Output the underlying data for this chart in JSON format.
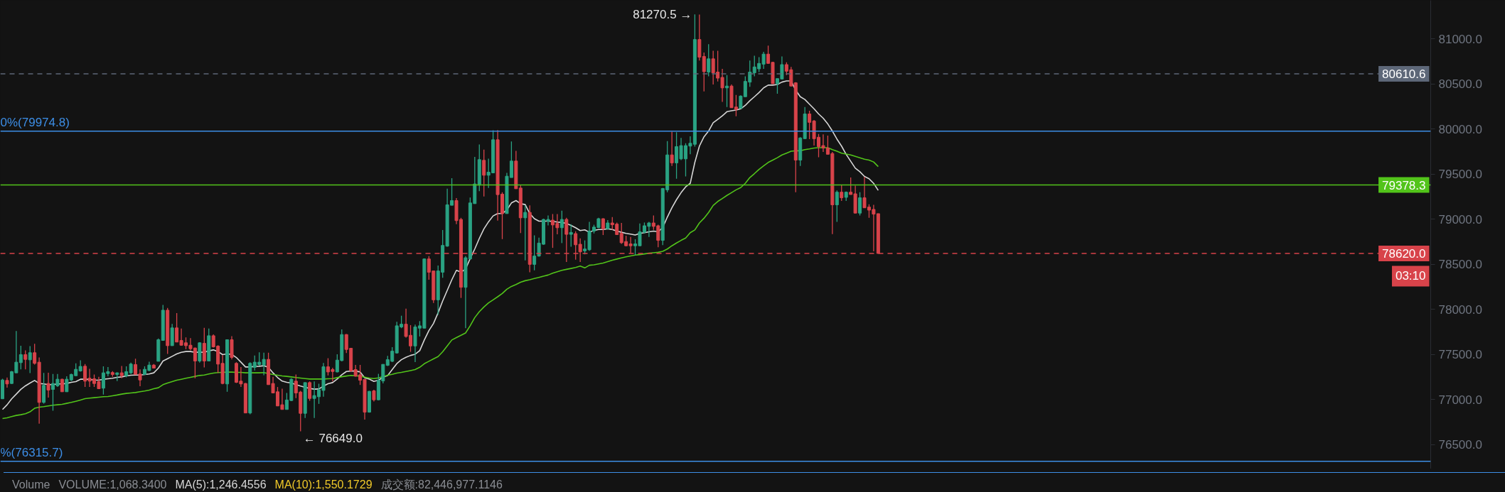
{
  "chart_data": {
    "type": "candlestick",
    "categories": [
      null,
      null,
      null,
      null,
      null,
      null,
      null,
      null,
      null,
      null,
      null,
      null,
      null,
      null,
      null,
      null,
      null,
      null,
      null,
      null,
      null,
      null,
      null,
      null,
      null,
      null,
      null,
      null,
      null,
      null,
      null,
      null,
      null,
      null,
      null,
      null,
      null,
      null,
      null,
      null,
      null,
      null,
      null,
      null,
      null,
      null,
      null,
      null,
      null,
      null,
      null,
      null,
      null,
      null,
      null,
      null,
      null,
      null,
      null,
      null,
      null,
      null,
      null,
      null,
      null,
      null,
      null,
      null,
      null,
      null,
      null,
      null,
      null,
      null,
      null,
      null,
      null,
      null,
      null,
      null,
      null,
      null,
      null,
      null,
      null,
      null,
      null,
      null,
      null,
      null,
      null,
      null,
      null,
      null,
      null,
      null,
      null,
      null,
      null,
      null,
      null,
      null,
      null,
      null,
      null,
      null,
      null,
      null,
      null,
      null,
      null,
      null,
      null,
      null,
      null,
      null,
      null,
      null,
      null,
      null,
      null,
      null,
      null,
      null,
      null,
      null,
      null,
      null,
      null,
      null,
      null,
      null,
      null,
      null,
      null,
      null,
      null,
      null,
      null,
      null,
      null,
      null,
      null,
      null,
      null,
      null,
      null,
      null,
      null,
      null,
      null,
      null,
      null,
      null,
      null,
      null,
      null,
      null,
      null,
      null,
      null,
      null,
      null,
      null,
      null,
      null,
      null,
      null,
      null,
      null,
      null,
      null,
      null,
      null,
      null,
      null,
      null,
      null,
      null,
      null,
      null,
      null,
      null,
      null,
      null,
      null,
      null,
      null,
      null,
      null,
      null,
      null
    ],
    "ohlc": [
      [
        77009,
        77231,
        77009,
        77218
      ],
      [
        77213,
        77245,
        77132,
        77174
      ],
      [
        77179,
        77318,
        77174,
        77310
      ],
      [
        77297,
        77761,
        77297,
        77415
      ],
      [
        77410,
        77598,
        77336,
        77499
      ],
      [
        77499,
        77546,
        77336,
        77446
      ],
      [
        77441,
        77593,
        77294,
        77520
      ],
      [
        77520,
        77619,
        77389,
        77402
      ],
      [
        77415,
        77467,
        76734,
        76969
      ],
      [
        76969,
        77297,
        76956,
        77158
      ],
      [
        77179,
        77299,
        77022,
        77106
      ],
      [
        77113,
        77284,
        76878,
        77179
      ],
      [
        77153,
        77284,
        77140,
        77226
      ],
      [
        77226,
        77231,
        77087,
        77087
      ],
      [
        77087,
        77258,
        77087,
        77226
      ],
      [
        77218,
        77289,
        77205,
        77279
      ],
      [
        77265,
        77402,
        77265,
        77336
      ],
      [
        77318,
        77436,
        77310,
        77368
      ],
      [
        77370,
        77394,
        77140,
        77205
      ],
      [
        77237,
        77341,
        77140,
        77205
      ],
      [
        77231,
        77279,
        77140,
        77179
      ],
      [
        77200,
        77252,
        77121,
        77121
      ],
      [
        77127,
        77368,
        77056,
        77297
      ],
      [
        77289,
        77362,
        77258,
        77310
      ],
      [
        77300,
        77315,
        77252,
        77279
      ],
      [
        77279,
        77302,
        77205,
        77297
      ],
      [
        77297,
        77373,
        77237,
        77265
      ],
      [
        77265,
        77368,
        77247,
        77310
      ],
      [
        77297,
        77410,
        77284,
        77394
      ],
      [
        77389,
        77454,
        77279,
        77279
      ],
      [
        77284,
        77336,
        77148,
        77218
      ],
      [
        77279,
        77368,
        77279,
        77336
      ],
      [
        77323,
        77420,
        77315,
        77383
      ],
      [
        77383,
        77394,
        77347,
        77349
      ],
      [
        77425,
        77677,
        77425,
        77664
      ],
      [
        77656,
        78049,
        77656,
        77991
      ],
      [
        77991,
        78017,
        77507,
        77598
      ],
      [
        77598,
        77839,
        77598,
        77795
      ],
      [
        77795,
        77960,
        77638,
        77638
      ],
      [
        77656,
        77787,
        77598,
        77603
      ],
      [
        77630,
        77690,
        77559,
        77598
      ],
      [
        77603,
        77682,
        77546,
        77564
      ],
      [
        77572,
        77577,
        77237,
        77428
      ],
      [
        77428,
        77635,
        77410,
        77630
      ],
      [
        77624,
        77795,
        77357,
        77428
      ],
      [
        77428,
        77787,
        77428,
        77708
      ],
      [
        77708,
        77724,
        77577,
        77585
      ],
      [
        77593,
        77603,
        77297,
        77394
      ],
      [
        77402,
        77493,
        77171,
        77179
      ],
      [
        77174,
        77664,
        77087,
        77664
      ],
      [
        77664,
        77703,
        77446,
        77467
      ],
      [
        77402,
        77415,
        77184,
        77192
      ],
      [
        77205,
        77362,
        77140,
        77174
      ],
      [
        77179,
        77184,
        76852,
        76852
      ],
      [
        76852,
        77415,
        76838,
        77402
      ],
      [
        77357,
        77488,
        77323,
        77415
      ],
      [
        77389,
        77525,
        77376,
        77415
      ],
      [
        77383,
        77520,
        77271,
        77446
      ],
      [
        77446,
        77520,
        77166,
        77166
      ],
      [
        77179,
        77252,
        77074,
        77074
      ],
      [
        77087,
        77140,
        76930,
        76930
      ],
      [
        76943,
        77121,
        76891,
        76891
      ],
      [
        76891,
        77074,
        76891,
        76996
      ],
      [
        76990,
        77237,
        76983,
        77226
      ],
      [
        77205,
        77279,
        77017,
        77074
      ],
      [
        77084,
        77097,
        76649,
        76848
      ],
      [
        76848,
        77189,
        76796,
        77189
      ],
      [
        77189,
        77202,
        76987,
        77013
      ],
      [
        77013,
        77202,
        76796,
        77045
      ],
      [
        77032,
        77176,
        76953,
        77110
      ],
      [
        77102,
        77406,
        77032,
        77364
      ],
      [
        77364,
        77459,
        77268,
        77307
      ],
      [
        77333,
        77354,
        77202,
        77312
      ],
      [
        77307,
        77503,
        77302,
        77438
      ],
      [
        77433,
        77779,
        77425,
        77721
      ],
      [
        77721,
        77726,
        77517,
        77556
      ],
      [
        77569,
        77574,
        77307,
        77320
      ],
      [
        77333,
        77385,
        77254,
        77260
      ],
      [
        77275,
        77385,
        77163,
        77215
      ],
      [
        77223,
        77228,
        76778,
        76861
      ],
      [
        76861,
        77097,
        76856,
        77092
      ],
      [
        77097,
        77110,
        76979,
        76998
      ],
      [
        76998,
        77286,
        76993,
        77215
      ],
      [
        77207,
        77391,
        77181,
        77391
      ],
      [
        77380,
        77485,
        77372,
        77443
      ],
      [
        77425,
        77582,
        77417,
        77537
      ],
      [
        77517,
        77862,
        77511,
        77818
      ],
      [
        77805,
        77930,
        77792,
        77836
      ],
      [
        77836,
        78009,
        77687,
        77700
      ],
      [
        77713,
        77826,
        77530,
        77595
      ],
      [
        77595,
        77831,
        77417,
        77805
      ],
      [
        77792,
        77870,
        77700,
        77818
      ],
      [
        77792,
        78564,
        77792,
        78559
      ],
      [
        78559,
        78591,
        78329,
        78412
      ],
      [
        78426,
        78426,
        78072,
        78106
      ],
      [
        78106,
        78486,
        77941,
        78426
      ],
      [
        78412,
        78879,
        78350,
        78709
      ],
      [
        78701,
        79337,
        78695,
        79159
      ],
      [
        79154,
        79455,
        79154,
        79206
      ],
      [
        79206,
        79233,
        78944,
        78984
      ],
      [
        78997,
        79015,
        78127,
        78245
      ],
      [
        78245,
        78591,
        77792,
        78572
      ],
      [
        78559,
        79240,
        78559,
        79180
      ],
      [
        79172,
        79691,
        79172,
        79390
      ],
      [
        79377,
        79827,
        79311,
        79660
      ],
      [
        79652,
        79770,
        79251,
        79487
      ],
      [
        79487,
        79670,
        79345,
        79521
      ],
      [
        79513,
        79985,
        79513,
        79880
      ],
      [
        79880,
        79987,
        78984,
        79272
      ],
      [
        79277,
        79298,
        78779,
        79062
      ],
      [
        79062,
        79513,
        79062,
        79476
      ],
      [
        79461,
        79861,
        79461,
        79644
      ],
      [
        79644,
        79757,
        79337,
        79337
      ],
      [
        79345,
        79382,
        78847,
        79015
      ],
      [
        79015,
        79154,
        78543,
        79075
      ],
      [
        79075,
        79154,
        78412,
        78499
      ],
      [
        78499,
        78821,
        78433,
        78591
      ],
      [
        78591,
        78795,
        78585,
        78735
      ],
      [
        78722,
        79005,
        78716,
        78997
      ],
      [
        78978,
        79041,
        78931,
        78997
      ],
      [
        78989,
        79057,
        78682,
        78936
      ],
      [
        78952,
        79057,
        78832,
        78905
      ],
      [
        78905,
        79094,
        78735,
        78997
      ],
      [
        78997,
        79015,
        78525,
        78832
      ],
      [
        78832,
        78944,
        78695,
        78853
      ],
      [
        78840,
        78866,
        78551,
        78716
      ],
      [
        78722,
        78787,
        78525,
        78638
      ],
      [
        78649,
        78765,
        78610,
        78669
      ],
      [
        78661,
        78971,
        78649,
        78868
      ],
      [
        78868,
        78938,
        78842,
        78912
      ],
      [
        78907,
        79015,
        78901,
        79005
      ],
      [
        79005,
        79010,
        78824,
        78894
      ],
      [
        78894,
        78989,
        78886,
        78958
      ],
      [
        78958,
        79023,
        78881,
        78938
      ],
      [
        78945,
        78963,
        78824,
        78829
      ],
      [
        78842,
        78958,
        78726,
        78739
      ],
      [
        78752,
        78816,
        78700,
        78705
      ],
      [
        78726,
        78803,
        78623,
        78705
      ],
      [
        78705,
        78778,
        78602,
        78726
      ],
      [
        78705,
        78953,
        78705,
        78860
      ],
      [
        78855,
        78963,
        78842,
        78927
      ],
      [
        78920,
        78971,
        78803,
        78958
      ],
      [
        78958,
        79041,
        78881,
        78920
      ],
      [
        78927,
        78938,
        78688,
        78765
      ],
      [
        78765,
        79345,
        78713,
        79340
      ],
      [
        79325,
        79866,
        79299,
        79712
      ],
      [
        79712,
        79970,
        79590,
        79624
      ],
      [
        79624,
        79964,
        79448,
        79804
      ],
      [
        79668,
        79900,
        79655,
        79815
      ],
      [
        79668,
        79841,
        79474,
        79815
      ],
      [
        79810,
        79918,
        79719,
        79841
      ],
      [
        79830,
        81270.5,
        79804,
        80991
      ],
      [
        80991,
        81267,
        80759,
        80795
      ],
      [
        80803,
        80847,
        80416,
        80635
      ],
      [
        80630,
        80940,
        80584,
        80777
      ],
      [
        80777,
        80867,
        80493,
        80622
      ],
      [
        80630,
        80867,
        80527,
        80563
      ],
      [
        80571,
        80666,
        80300,
        80455
      ],
      [
        80455,
        80596,
        80243,
        80475
      ],
      [
        80475,
        80493,
        80235,
        80235
      ],
      [
        80243,
        80377,
        80140,
        80217
      ],
      [
        80228,
        80372,
        80228,
        80364
      ],
      [
        80357,
        80584,
        80357,
        80527
      ],
      [
        80519,
        80759,
        80468,
        80630
      ],
      [
        80622,
        80811,
        80584,
        80687
      ],
      [
        80666,
        80795,
        80630,
        80726
      ],
      [
        80718,
        80855,
        80666,
        80829
      ],
      [
        80829,
        80924,
        80726,
        80726
      ],
      [
        80738,
        80744,
        80501,
        80501
      ],
      [
        80501,
        80558,
        80390,
        80558
      ],
      [
        80553,
        80803,
        80553,
        80713
      ],
      [
        80713,
        80739,
        80597,
        80640
      ],
      [
        80656,
        80687,
        80475,
        80475
      ],
      [
        80511,
        80519,
        79299,
        79655
      ],
      [
        79655,
        79908,
        79590,
        79900
      ],
      [
        79892,
        80243,
        79892,
        80166
      ],
      [
        80166,
        80202,
        79887,
        80073
      ],
      [
        80088,
        80099,
        79815,
        79892
      ],
      [
        79908,
        79944,
        79686,
        79804
      ],
      [
        79815,
        79939,
        79745,
        79789
      ],
      [
        79789,
        79926,
        79719,
        79719
      ],
      [
        79727,
        79745,
        78834,
        79159
      ],
      [
        79159,
        79319,
        78971,
        79299
      ],
      [
        79299,
        79384,
        79203,
        79237
      ],
      [
        79242,
        79307,
        79203,
        79299
      ],
      [
        79299,
        79461,
        79273,
        79273
      ],
      [
        79281,
        79371,
        79067,
        79067
      ],
      [
        79067,
        79299,
        79041,
        79237
      ],
      [
        79237,
        79469,
        79126,
        79126
      ],
      [
        79134,
        79165,
        79015,
        79100
      ],
      [
        79108,
        79159,
        78643,
        79056
      ],
      [
        79061,
        79061,
        78620,
        78620
      ]
    ],
    "colors": [
      "#2aa383",
      "#d8434a",
      "#2aa383",
      "#2aa383",
      "#2aa383",
      "#d8434a",
      "#2aa383",
      "#d8434a",
      "#d8434a",
      "#2aa383",
      "#d8434a",
      "#2aa383",
      "#2aa383",
      "#d8434a",
      "#2aa383",
      "#2aa383",
      "#2aa383",
      "#2aa383",
      "#d8434a",
      "#d8434a",
      "#d8434a",
      "#d8434a",
      "#2aa383",
      "#2aa383",
      "#d8434a",
      "#2aa383",
      "#d8434a",
      "#2aa383",
      "#2aa383",
      "#d8434a",
      "#d8434a",
      "#2aa383",
      "#2aa383",
      "#d8434a",
      "#2aa383",
      "#2aa383",
      "#d8434a",
      "#2aa383",
      "#d8434a",
      "#d8434a",
      "#d8434a",
      "#d8434a",
      "#d8434a",
      "#2aa383",
      "#d8434a",
      "#2aa383",
      "#d8434a",
      "#d8434a",
      "#d8434a",
      "#2aa383",
      "#d8434a",
      "#d8434a",
      "#d8434a",
      "#d8434a",
      "#2aa383",
      "#2aa383",
      "#2aa383",
      "#2aa383",
      "#d8434a",
      "#d8434a",
      "#d8434a",
      "#d8434a",
      "#2aa383",
      "#2aa383",
      "#d8434a",
      "#d8434a",
      "#2aa383",
      "#d8434a",
      "#2aa383",
      "#2aa383",
      "#2aa383",
      "#d8434a",
      "#d8434a",
      "#2aa383",
      "#2aa383",
      "#d8434a",
      "#d8434a",
      "#d8434a",
      "#d8434a",
      "#d8434a",
      "#2aa383",
      "#d8434a",
      "#2aa383",
      "#2aa383",
      "#2aa383",
      "#2aa383",
      "#2aa383",
      "#2aa383",
      "#d8434a",
      "#d8434a",
      "#2aa383",
      "#2aa383",
      "#2aa383",
      "#d8434a",
      "#d8434a",
      "#2aa383",
      "#2aa383",
      "#2aa383",
      "#2aa383",
      "#d8434a",
      "#d8434a",
      "#2aa383",
      "#2aa383",
      "#2aa383",
      "#2aa383",
      "#d8434a",
      "#2aa383",
      "#2aa383",
      "#d8434a",
      "#d8434a",
      "#2aa383",
      "#2aa383",
      "#d8434a",
      "#d8434a",
      "#2aa383",
      "#d8434a",
      "#2aa383",
      "#2aa383",
      "#2aa383",
      "#2aa383",
      "#d8434a",
      "#d8434a",
      "#2aa383",
      "#d8434a",
      "#2aa383",
      "#d8434a",
      "#d8434a",
      "#2aa383",
      "#2aa383",
      "#2aa383",
      "#2aa383",
      "#d8434a",
      "#2aa383",
      "#d8434a",
      "#d8434a",
      "#d8434a",
      "#d8434a",
      "#d8434a",
      "#2aa383",
      "#2aa383",
      "#2aa383",
      "#2aa383",
      "#d8434a",
      "#d8434a",
      "#2aa383",
      "#2aa383",
      "#d8434a",
      "#2aa383",
      "#2aa383",
      "#2aa383",
      "#2aa383",
      "#2aa383",
      "#d8434a",
      "#d8434a",
      "#2aa383",
      "#d8434a",
      "#d8434a",
      "#d8434a",
      "#2aa383",
      "#d8434a",
      "#d8434a",
      "#2aa383",
      "#2aa383",
      "#2aa383",
      "#2aa383",
      "#2aa383",
      "#2aa383",
      "#d8434a",
      "#d8434a",
      "#2aa383",
      "#2aa383",
      "#d8434a",
      "#d8434a",
      "#d8434a",
      "#2aa383",
      "#2aa383",
      "#d8434a",
      "#d8434a",
      "#d8434a",
      "#d8434a",
      "#d8434a",
      "#d8434a",
      "#2aa383",
      "#d8434a",
      "#2aa383",
      "#d8434a",
      "#d8434a",
      "#2aa383",
      "#d8434a",
      "#d8434a",
      "#d8434a",
      "#d8434a"
    ],
    "series": [
      {
        "type": "line",
        "color": "#d6d6d6",
        "values": [
          76891,
          76943,
          77009,
          77061,
          77114,
          77153,
          77184,
          77213,
          77179,
          77174,
          77166,
          77166,
          77174,
          77174,
          77179,
          77192,
          77200,
          77226,
          77226,
          77224,
          77218,
          77216,
          77226,
          77231,
          77237,
          77247,
          77252,
          77263,
          77271,
          77273,
          77273,
          77279,
          77284,
          77297,
          77349,
          77428,
          77454,
          77480,
          77507,
          77525,
          77533,
          77533,
          77525,
          77525,
          77525,
          77541,
          77551,
          77533,
          77499,
          77507,
          77502,
          77467,
          77415,
          77362,
          77362,
          77368,
          77370,
          77376,
          77357,
          77297,
          77245,
          77205,
          77192,
          77184,
          77166,
          77150,
          77137,
          77124,
          77116,
          77118,
          77150,
          77176,
          77189,
          77228,
          77275,
          77312,
          77317,
          77317,
          77307,
          77241,
          77228,
          77202,
          77215,
          77249,
          77267,
          77333,
          77399,
          77443,
          77469,
          77490,
          77503,
          77543,
          77661,
          77765,
          77844,
          77962,
          78093,
          78211,
          78329,
          78433,
          78413,
          78447,
          78564,
          78669,
          78787,
          78892,
          78971,
          79036,
          79062,
          79062,
          79102,
          79180,
          79206,
          79172,
          79162,
          79062,
          79005,
          78978,
          78978,
          78978,
          78976,
          78968,
          78963,
          78952,
          78931,
          78905,
          78874,
          78881,
          78855,
          78876,
          78886,
          78886,
          78894,
          78886,
          78868,
          78855,
          78842,
          78834,
          78824,
          78842,
          78850,
          78860,
          78868,
          78860,
          78907,
          79023,
          79126,
          79216,
          79294,
          79358,
          79397,
          79629,
          79810,
          79913,
          79977,
          80068,
          80106,
          80145,
          80191,
          80202,
          80210,
          80223,
          80261,
          80313,
          80357,
          80403,
          80455,
          80486,
          80486,
          80493,
          80519,
          80532,
          80532,
          80429,
          80357,
          80326,
          80274,
          80223,
          80166,
          80119,
          80055,
          79977,
          79887,
          79810,
          79719,
          79642,
          79565,
          79526,
          79474,
          79448,
          79397,
          79319
        ]
      },
      {
        "type": "line",
        "color": "#52c41a",
        "values": [
          76791,
          76799,
          76812,
          76825,
          76833,
          76844,
          76865,
          76904,
          76917,
          76922,
          76930,
          76938,
          76943,
          76948,
          76959,
          76969,
          76982,
          76996,
          77011,
          77017,
          77022,
          77027,
          77032,
          77035,
          77043,
          77051,
          77061,
          77069,
          77074,
          77079,
          77087,
          77095,
          77106,
          77121,
          77132,
          77166,
          77184,
          77200,
          77216,
          77226,
          77237,
          77247,
          77258,
          77268,
          77273,
          77284,
          77294,
          77300,
          77302,
          77305,
          77305,
          77302,
          77302,
          77297,
          77297,
          77297,
          77297,
          77300,
          77289,
          77279,
          77271,
          77263,
          77258,
          77252,
          77245,
          77239,
          77233,
          77228,
          77228,
          77228,
          77228,
          77231,
          77233,
          77244,
          77254,
          77262,
          77268,
          77265,
          77260,
          77249,
          77239,
          77233,
          77241,
          77254,
          77270,
          77281,
          77294,
          77302,
          77312,
          77322,
          77333,
          77359,
          77398,
          77425,
          77451,
          77477,
          77530,
          77595,
          77661,
          77687,
          77713,
          77739,
          77818,
          77909,
          77975,
          78027,
          78072,
          78106,
          78140,
          78177,
          78224,
          78255,
          78276,
          78302,
          78318,
          78329,
          78342,
          78355,
          78368,
          78381,
          78402,
          78418,
          78433,
          78444,
          78454,
          78465,
          78481,
          78460,
          78489,
          78494,
          78504,
          78514,
          78530,
          78545,
          78558,
          78571,
          78582,
          78592,
          78602,
          78607,
          78615,
          78623,
          78628,
          78633,
          78643,
          78669,
          78705,
          78736,
          78765,
          78791,
          78850,
          78881,
          78958,
          79010,
          79074,
          79152,
          79196,
          79229,
          79263,
          79294,
          79325,
          79350,
          79397,
          79461,
          79505,
          79552,
          79590,
          79629,
          79655,
          79681,
          79712,
          79732,
          79753,
          79758,
          79758,
          79771,
          79779,
          79789,
          79792,
          79792,
          79792,
          79771,
          79753,
          79732,
          79722,
          79712,
          79696,
          79681,
          79665,
          79655,
          79634,
          79583
        ]
      }
    ],
    "ylim": [
      76232,
      81425
    ],
    "yticks": [
      {
        "value": 76500,
        "label": "76500.0"
      },
      {
        "value": 77000,
        "label": "77000.0"
      },
      {
        "value": 77500,
        "label": "77500.0"
      },
      {
        "value": 78000,
        "label": "78000.0"
      },
      {
        "value": 78500,
        "label": "78500.0"
      },
      {
        "value": 79000,
        "label": "79000.0"
      },
      {
        "value": 79500,
        "label": "79500.0"
      },
      {
        "value": 80000,
        "label": "80000.0"
      },
      {
        "value": 80500,
        "label": "80500.0"
      },
      {
        "value": 81000,
        "label": "81000.0"
      }
    ],
    "ref_lines": [
      {
        "axis": "y",
        "value": 80610.6,
        "label": "80610.6",
        "color": "#5d6778",
        "line_style": "dashed"
      },
      {
        "axis": "y",
        "value": 79974.8,
        "color": "#3d8ee6",
        "line_style": "solid"
      },
      {
        "axis": "y",
        "value": 79378.3,
        "label": "79378.3",
        "color": "#52c41a",
        "line_style": "solid"
      },
      {
        "axis": "y",
        "value": 78620.0,
        "label": "78620.0",
        "color": "#d8434a",
        "line_style": "dashed"
      },
      {
        "axis": "y",
        "value": 76315.7,
        "color": "#3d8ee6",
        "line_style": "solid"
      }
    ],
    "annotations": [
      "81270.5 →",
      "← 76649.0",
      {
        "text": "0%(79974.8)",
        "y": 79974.8
      },
      {
        "text": "%(76315.7)",
        "y": 76315.7
      },
      "03:10",
      "Volume",
      "VOLUME:1,068.3400",
      "MA(5):1,246.4556",
      "MA(10):1,550.1729",
      "成交额:82,446,977.1146"
    ],
    "grid": false,
    "tick_labels": "y"
  }
}
